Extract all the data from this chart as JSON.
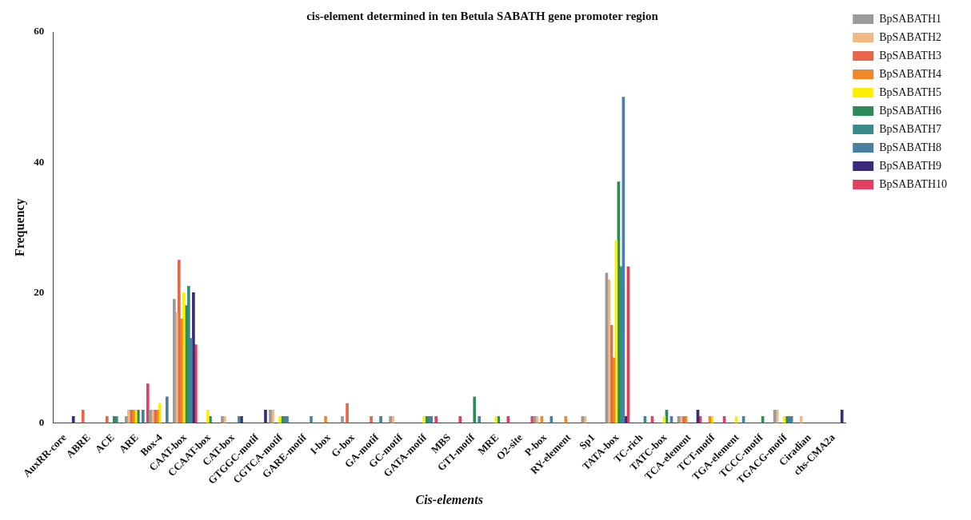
{
  "chart_data": {
    "type": "bar",
    "title": "cis-element determined in ten Betula SABATH gene promoter region",
    "xlabel": "Cis-elements",
    "ylabel": "Frequency",
    "categories": [
      "AuxRR-core",
      "ABRE",
      "ACE",
      "ARE",
      "Box-4",
      "CAAT-box",
      "CCAAT-box",
      "CAT-box",
      "GTGGC-motif",
      "CGTCA-motif",
      "GARE-motif",
      "I-box",
      "G-box",
      "GA-motif",
      "GC-motif",
      "GATA-motif",
      "MBS",
      "GT1-motif",
      "MRE",
      "O2-site",
      "P-box",
      "RY-element",
      "Sp1",
      "TATA-box",
      "TC-rich",
      "TATC-box",
      "TCA-element",
      "TCT-motif",
      "TGA-element",
      "TCCC-motif",
      "TGACG-motif",
      "Ciradian",
      "chs-CMA2a"
    ],
    "series": [
      {
        "name": "BpSABATH1",
        "color": "#9a9a9a",
        "values": [
          null,
          null,
          null,
          1,
          2,
          19,
          null,
          1,
          null,
          2,
          null,
          null,
          1,
          null,
          1,
          null,
          null,
          null,
          null,
          null,
          1,
          null,
          1,
          23,
          null,
          null,
          1,
          null,
          null,
          null,
          2,
          null,
          null
        ]
      },
      {
        "name": "BpSABATH2",
        "color": "#f0b882",
        "values": [
          null,
          null,
          null,
          2,
          2,
          17,
          null,
          1,
          null,
          2,
          null,
          null,
          null,
          null,
          1,
          null,
          null,
          null,
          null,
          null,
          1,
          null,
          1,
          22,
          null,
          null,
          1,
          null,
          null,
          null,
          2,
          1,
          null
        ]
      },
      {
        "name": "BpSABATH3",
        "color": "#e8654a",
        "values": [
          null,
          2,
          1,
          2,
          2,
          25,
          null,
          null,
          null,
          null,
          null,
          null,
          3,
          1,
          null,
          null,
          null,
          null,
          null,
          null,
          null,
          null,
          null,
          15,
          null,
          null,
          1,
          null,
          null,
          null,
          null,
          null,
          null
        ]
      },
      {
        "name": "BpSABATH4",
        "color": "#f0882a",
        "values": [
          null,
          null,
          null,
          2,
          2,
          16,
          null,
          null,
          null,
          null,
          null,
          1,
          null,
          null,
          null,
          null,
          null,
          null,
          null,
          null,
          1,
          1,
          null,
          10,
          null,
          null,
          1,
          1,
          null,
          null,
          null,
          null,
          null
        ]
      },
      {
        "name": "BpSABATH5",
        "color": "#ffee00",
        "values": [
          null,
          null,
          null,
          2,
          3,
          20,
          2,
          null,
          null,
          1,
          null,
          null,
          null,
          null,
          null,
          1,
          null,
          null,
          1,
          null,
          null,
          null,
          null,
          28,
          null,
          1,
          null,
          1,
          1,
          null,
          1,
          null,
          null
        ]
      },
      {
        "name": "BpSABATH6",
        "color": "#2e8b57",
        "values": [
          null,
          null,
          1,
          2,
          null,
          18,
          1,
          null,
          null,
          1,
          null,
          null,
          null,
          null,
          null,
          1,
          null,
          4,
          1,
          null,
          null,
          null,
          null,
          37,
          null,
          2,
          null,
          null,
          null,
          1,
          1,
          null,
          null
        ]
      },
      {
        "name": "BpSABATH7",
        "color": "#3a8a8a",
        "values": [
          null,
          null,
          1,
          null,
          null,
          21,
          null,
          null,
          null,
          1,
          null,
          null,
          null,
          1,
          null,
          1,
          null,
          null,
          null,
          null,
          null,
          null,
          null,
          24,
          1,
          null,
          null,
          null,
          null,
          null,
          1,
          null,
          null
        ]
      },
      {
        "name": "BpSABATH8",
        "color": "#4a7fa0",
        "values": [
          null,
          null,
          null,
          2,
          4,
          13,
          null,
          1,
          null,
          1,
          1,
          null,
          null,
          null,
          null,
          1,
          null,
          1,
          null,
          null,
          1,
          null,
          null,
          50,
          null,
          1,
          null,
          null,
          1,
          null,
          1,
          null,
          null
        ]
      },
      {
        "name": "BpSABATH9",
        "color": "#3b2a7a",
        "values": [
          1,
          null,
          null,
          null,
          null,
          20,
          null,
          1,
          2,
          null,
          null,
          null,
          null,
          null,
          null,
          null,
          null,
          null,
          null,
          null,
          null,
          null,
          null,
          1,
          null,
          null,
          2,
          null,
          null,
          null,
          null,
          null,
          2
        ]
      },
      {
        "name": "BpSABATH10",
        "color": "#e04060",
        "values": [
          null,
          null,
          null,
          6,
          null,
          12,
          null,
          null,
          null,
          null,
          null,
          null,
          null,
          null,
          null,
          1,
          1,
          null,
          1,
          1,
          null,
          null,
          null,
          24,
          1,
          null,
          1,
          1,
          null,
          null,
          null,
          null,
          null
        ]
      }
    ],
    "ylim": [
      0,
      60
    ],
    "yticks": [
      0,
      20,
      40,
      60
    ],
    "grid": false,
    "legend": "top right"
  }
}
